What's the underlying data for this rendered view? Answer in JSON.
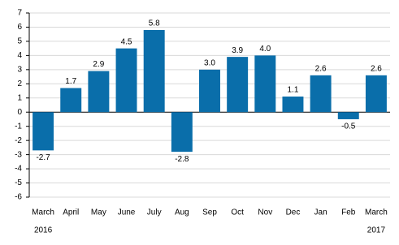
{
  "chart_data": {
    "type": "bar",
    "categories": [
      "March",
      "April",
      "May",
      "June",
      "July",
      "Aug",
      "Sep",
      "Oct",
      "Nov",
      "Dec",
      "Jan",
      "Feb",
      "March"
    ],
    "years": [
      "2016",
      null,
      null,
      null,
      null,
      null,
      null,
      null,
      null,
      null,
      null,
      null,
      "2017"
    ],
    "values": [
      -2.7,
      1.7,
      2.9,
      4.5,
      5.8,
      -2.8,
      3.0,
      3.9,
      4.0,
      1.1,
      2.6,
      -0.5,
      2.6
    ],
    "value_labels": [
      "-2.7",
      "1.7",
      "2.9",
      "4.5",
      "5.8",
      "-2.8",
      "3.0",
      "3.9",
      "4.0",
      "1.1",
      "2.6",
      "-0.5",
      "2.6"
    ],
    "color": "#0a6eaa",
    "ylim": [
      -6,
      7
    ],
    "yticks": [
      -6,
      -5,
      -4,
      -3,
      -2,
      -1,
      0,
      1,
      2,
      3,
      4,
      5,
      6,
      7
    ],
    "grid": true
  }
}
